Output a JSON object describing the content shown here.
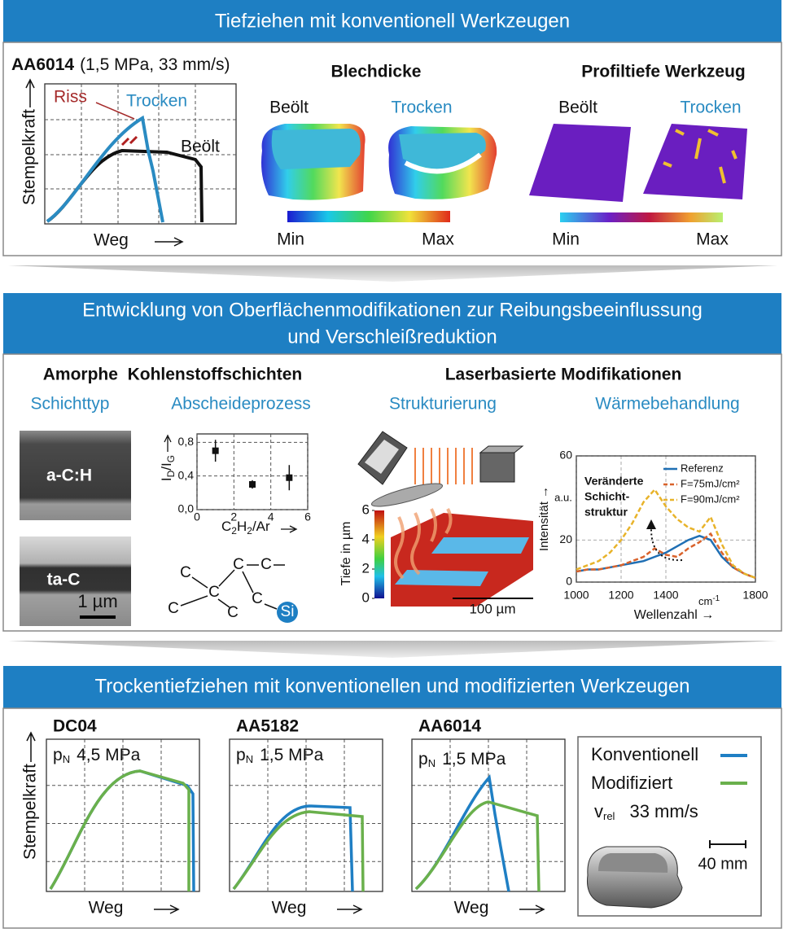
{
  "section1": {
    "title": "Tiefziehen mit konventionell Werkzeugen",
    "material": "AA6014",
    "conditions": "(1,5 MPa, 33 mm/s)",
    "force_chart": {
      "y_label": "Stempelkraft",
      "x_label": "Weg",
      "crack_label": "Riss",
      "dry_label": "Trocken",
      "oiled_label": "Beölt"
    },
    "sheet_thickness": {
      "title": "Blechdicke",
      "oiled": "Beölt",
      "dry": "Trocken",
      "min": "Min",
      "max": "Max"
    },
    "tool_profile": {
      "title": "Profiltiefe Werkzeug",
      "oiled": "Beölt",
      "dry": "Trocken",
      "min": "Min",
      "max": "Max"
    }
  },
  "section2": {
    "title_lines": [
      "Entwicklung von Oberflächenmodifikationen zur Reibungsbeeinflussung",
      "und Verschleißreduktion"
    ],
    "carbon": {
      "title": "Amorphe  Kohlenstoffschichten",
      "layer_type": "Schichttyp",
      "deposition": "Abscheideprozess",
      "sem_labels": [
        "a-C:H",
        "ta-C"
      ],
      "sem_scale": "1 µm",
      "deposition_chart": {
        "type": "scatter",
        "y_label_parts": [
          "I",
          "D",
          "/I",
          "G"
        ],
        "x_label_parts": [
          "C",
          "2",
          "H",
          "2",
          "/Ar"
        ],
        "x": [
          1,
          3,
          5
        ],
        "values": [
          0.7,
          0.3,
          0.38
        ],
        "errors": [
          0.13,
          0.05,
          0.15
        ],
        "xlim": [
          0,
          6
        ],
        "ylim": [
          0,
          0.9
        ],
        "xticks": [
          0,
          2,
          4,
          6
        ],
        "yticks": [
          {
            "value": 0,
            "label": "0,0"
          },
          {
            "value": 0.4,
            "label": "0,4"
          },
          {
            "value": 0.8,
            "label": "0,8"
          }
        ],
        "grid": true
      },
      "atoms": [
        "C",
        "C",
        "C",
        "C",
        "C",
        "C",
        "C",
        "Si"
      ]
    },
    "laser": {
      "title": "Laserbasierte Modifikationen",
      "structuring": "Strukturierung",
      "heat_treatment": "Wärmebehandlung",
      "depth_scale": {
        "label": "Tiefe in µm",
        "lim": [
          0,
          6
        ],
        "ticks": [
          0,
          2,
          4,
          6
        ]
      },
      "scale_bar": "100 µm",
      "spectrum_chart": {
        "type": "line",
        "x": [
          1000,
          1050,
          1100,
          1150,
          1200,
          1250,
          1300,
          1350,
          1400,
          1450,
          1500,
          1550,
          1600,
          1650,
          1700,
          1750,
          1800
        ],
        "series": [
          {
            "name": "Referenz",
            "color": "#1f6fb4",
            "dashed": false,
            "values": [
              5,
              6,
              6,
              7,
              8,
              9,
              10,
              12,
              14,
              17,
              20,
              22,
              20,
              12,
              7,
              4,
              2
            ]
          },
          {
            "name": "F=75mJ/cm²",
            "color": "#d9622b",
            "dashed": true,
            "values": [
              5,
              6,
              6,
              7,
              8,
              10,
              12,
              16,
              13,
              12,
              16,
              19,
              23,
              14,
              7,
              4,
              2
            ]
          },
          {
            "name": "F=90mJ/cm²",
            "color": "#e8b32a",
            "dashed": true,
            "values": [
              6,
              8,
              10,
              14,
              20,
              28,
              38,
              44,
              36,
              30,
              26,
              24,
              31,
              18,
              8,
              4,
              2
            ]
          }
        ],
        "xlim": [
          1000,
          1800
        ],
        "ylim": [
          0,
          60
        ],
        "xticks": [
          1000,
          1200,
          1400,
          1800
        ],
        "yticks": [
          0,
          20,
          60
        ],
        "grid": true,
        "y_label": "Intensität →",
        "y_unit": "a.u.",
        "x_label": "Wellenzahl →",
        "x_unit_parts": [
          "cm",
          "-1"
        ],
        "annotation_lines": [
          "Veränderte",
          "Schicht-",
          "struktur"
        ]
      }
    }
  },
  "section3": {
    "title": "Trockentiefziehen mit konventionellen und modifizierten Werkzeugen",
    "y_label": "Stempelkraft",
    "plots": [
      {
        "material": "DC04",
        "pressure_symbol": "p",
        "pressure_index": "N",
        "pressure": "4,5 MPa",
        "x_label": "Weg"
      },
      {
        "material": "AA5182",
        "pressure_symbol": "p",
        "pressure_index": "N",
        "pressure": "1,5 MPa",
        "x_label": "Weg"
      },
      {
        "material": "AA6014",
        "pressure_symbol": "p",
        "pressure_index": "N",
        "pressure": "1,5 MPa",
        "x_label": "Weg"
      }
    ],
    "legend": [
      "Konventionell",
      "Modifiziert"
    ],
    "velocity_symbol": "v",
    "velocity_index": "rel",
    "velocity": "33 mm/s",
    "scale_bar": "40 mm"
  }
}
